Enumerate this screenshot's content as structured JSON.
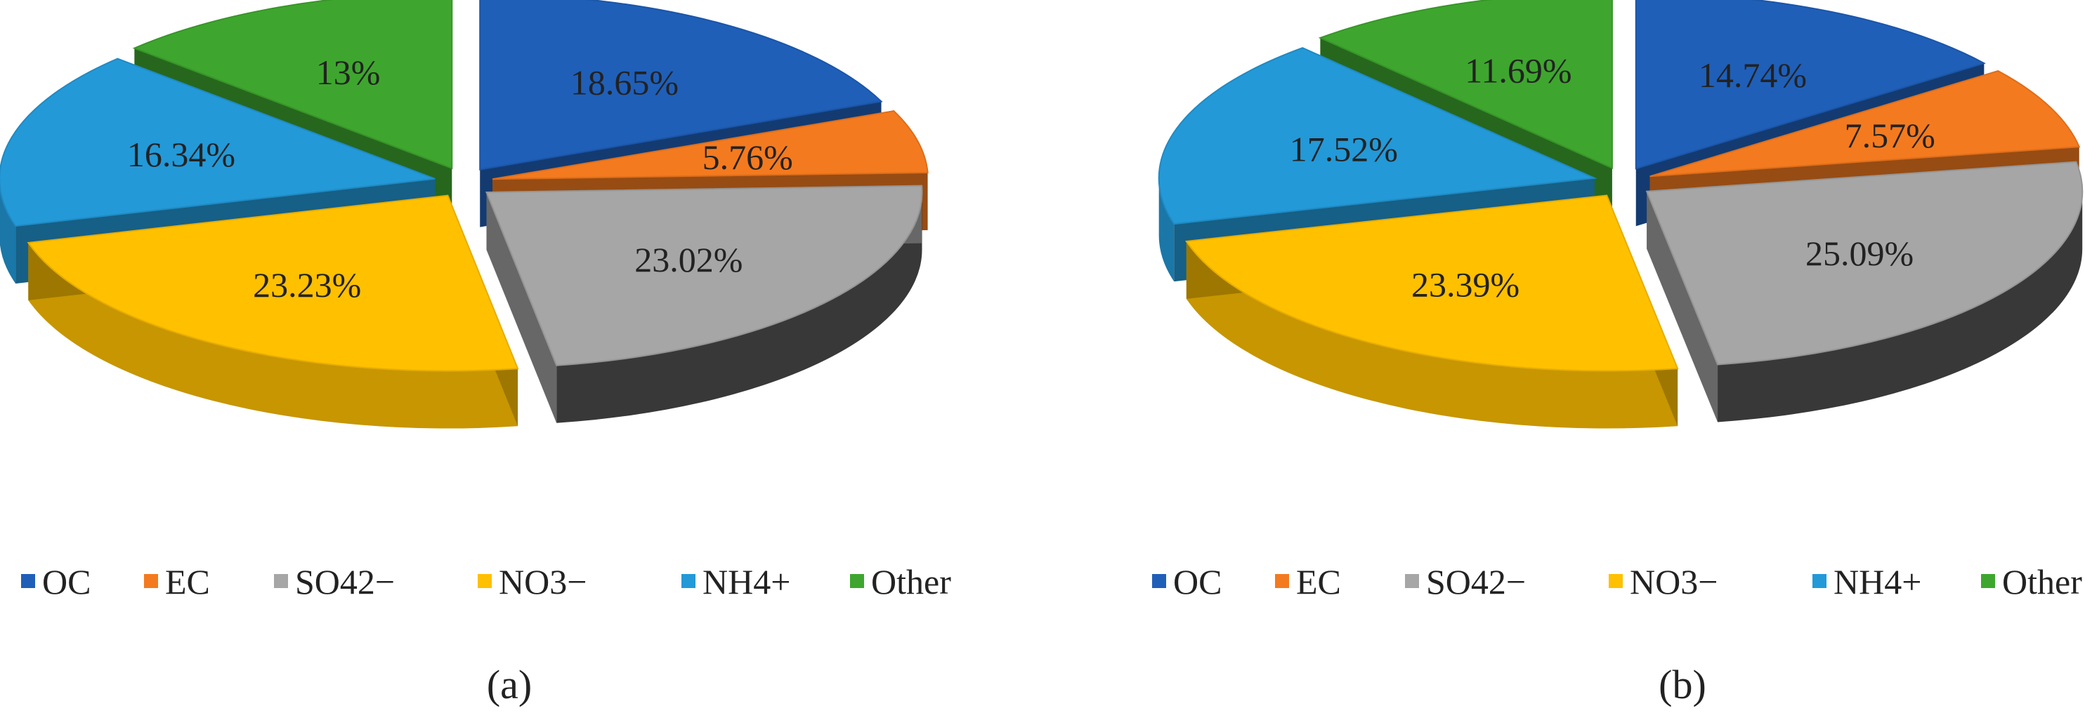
{
  "chart_data": [
    {
      "type": "pie",
      "caption": "(a)",
      "categories": [
        "OC",
        "EC",
        "SO42−",
        "NO3−",
        "NH4+",
        "Other"
      ],
      "values": [
        18.65,
        5.76,
        23.02,
        23.23,
        16.34,
        13
      ],
      "labels": [
        "18.65%",
        "5.76%",
        "23.02%",
        "23.23%",
        "16.34%",
        "13%"
      ],
      "colors": [
        "#1F5FB8",
        "#F47A1F",
        "#A6A6A6",
        "#FFC000",
        "#2399D8",
        "#3EA62E"
      ],
      "legend_position": "bottom",
      "exploded": true,
      "style": "3d"
    },
    {
      "type": "pie",
      "caption": "(b)",
      "categories": [
        "OC",
        "EC",
        "SO42−",
        "NO3−",
        "NH4+",
        "Other"
      ],
      "values": [
        14.74,
        7.57,
        25.09,
        23.39,
        17.52,
        11.69
      ],
      "labels": [
        "14.74%",
        "7.57%",
        "25.09%",
        "23.39%",
        "17.52%",
        "11.69%"
      ],
      "colors": [
        "#1F5FB8",
        "#F47A1F",
        "#A6A6A6",
        "#FFC000",
        "#2399D8",
        "#3EA62E"
      ],
      "legend_position": "bottom",
      "exploded": true,
      "style": "3d"
    }
  ]
}
